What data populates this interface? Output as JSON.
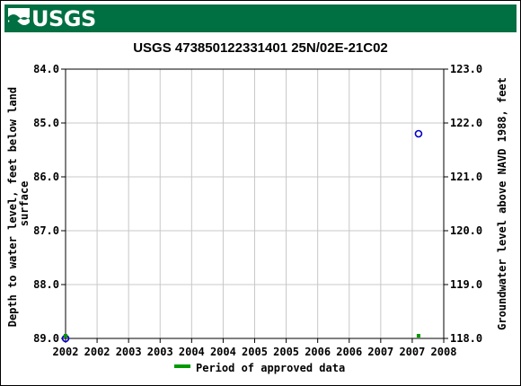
{
  "header": {
    "logo_text": "USGS",
    "brand_color": "#006f41"
  },
  "chart_data": {
    "type": "scatter",
    "title": "USGS 473850122331401 25N/02E-21C02",
    "ylabel_left": "Depth to water level, feet below land surface",
    "ylabel_left_lines": [
      "Depth to water level, feet below land",
      "surface"
    ],
    "ylabel_right": "Groundwater level above NAVD 1988, feet",
    "x_tick_labels": [
      "2002",
      "2002",
      "2003",
      "2003",
      "2004",
      "2004",
      "2005",
      "2005",
      "2006",
      "2006",
      "2007",
      "2007",
      "2008"
    ],
    "xlim": [
      2002.0,
      2008.0
    ],
    "ylim_left": [
      84.0,
      89.0
    ],
    "left_inverted": true,
    "y_ticks_left": [
      "84.0",
      "85.0",
      "86.0",
      "87.0",
      "88.0",
      "89.0"
    ],
    "ylim_right": [
      118.0,
      123.0
    ],
    "y_ticks_right": [
      "123.0",
      "122.0",
      "121.0",
      "120.0",
      "119.0",
      "118.0"
    ],
    "grid": true,
    "series": [
      {
        "marker": "open-circle",
        "color": "#0000cc",
        "points": [
          {
            "x": 2002.0,
            "y": 89.0
          },
          {
            "x": 2007.6,
            "y": 85.2
          }
        ]
      }
    ],
    "approved_periods": [
      {
        "x": 2002.0
      },
      {
        "x": 2007.6
      }
    ],
    "approved_color": "#009900",
    "legend": {
      "label": "Period of approved data",
      "placement": "bottom-center"
    }
  }
}
